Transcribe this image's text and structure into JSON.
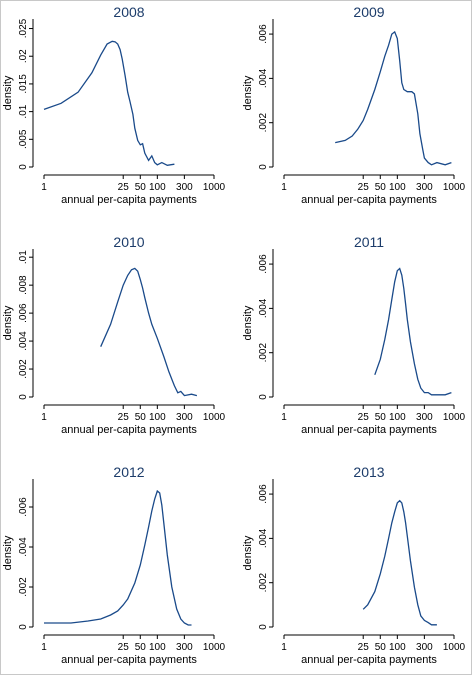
{
  "chart_data": [
    {
      "type": "line",
      "title": "2008",
      "xlabel": "annual per-capita payments",
      "ylabel": "density",
      "xscale": "log",
      "xticks": [
        "1",
        "25",
        "50",
        "100",
        "300",
        "1000"
      ],
      "xtick_values": [
        1,
        25,
        50,
        100,
        300,
        1000
      ],
      "yticks": [
        "0",
        ".005",
        ".01",
        ".015",
        ".02",
        ".025"
      ],
      "ytick_values": [
        0,
        0.005,
        0.01,
        0.015,
        0.02,
        0.025
      ],
      "ylim": [
        0,
        0.026
      ],
      "series": [
        {
          "x": [
            1,
            2,
            4,
            7,
            10,
            13,
            16,
            18,
            20,
            22,
            24,
            27,
            30,
            33,
            37,
            40,
            45,
            50,
            55,
            60,
            70,
            80,
            90,
            100,
            120,
            150,
            200
          ],
          "y": [
            0.0104,
            0.0115,
            0.0135,
            0.017,
            0.0202,
            0.0222,
            0.0227,
            0.0226,
            0.0222,
            0.0212,
            0.0195,
            0.0165,
            0.0135,
            0.0118,
            0.0095,
            0.007,
            0.0048,
            0.004,
            0.0042,
            0.0025,
            0.0012,
            0.002,
            0.0008,
            0.0004,
            0.0008,
            0.0003,
            0.0005
          ]
        }
      ]
    },
    {
      "type": "line",
      "title": "2009",
      "xlabel": "annual per-capita payments",
      "ylabel": "density",
      "xscale": "log",
      "xticks": [
        "1",
        "25",
        "50",
        "100",
        "300",
        "1000"
      ],
      "xtick_values": [
        1,
        25,
        50,
        100,
        300,
        1000
      ],
      "yticks": [
        "0",
        ".002",
        ".004",
        ".006"
      ],
      "ytick_values": [
        0,
        0.002,
        0.004,
        0.006
      ],
      "ylim": [
        0,
        0.0065
      ],
      "series": [
        {
          "x": [
            8,
            12,
            16,
            20,
            25,
            30,
            40,
            50,
            60,
            70,
            80,
            90,
            100,
            110,
            120,
            130,
            150,
            180,
            200,
            230,
            250,
            280,
            300,
            350,
            400,
            500,
            700,
            900
          ],
          "y": [
            0.0011,
            0.0012,
            0.0014,
            0.0017,
            0.0021,
            0.0026,
            0.0035,
            0.0043,
            0.005,
            0.0055,
            0.006,
            0.0061,
            0.0058,
            0.0048,
            0.0038,
            0.0035,
            0.0034,
            0.0034,
            0.0033,
            0.0024,
            0.0015,
            0.0008,
            0.0004,
            0.0002,
            0.0001,
            0.0002,
            0.0001,
            0.0002
          ]
        }
      ]
    },
    {
      "type": "line",
      "title": "2010",
      "xlabel": "annual per-capita payments",
      "ylabel": "density",
      "xscale": "log",
      "xticks": [
        "1",
        "25",
        "50",
        "100",
        "300",
        "1000"
      ],
      "xtick_values": [
        1,
        25,
        50,
        100,
        300,
        1000
      ],
      "yticks": [
        "0",
        ".002",
        ".004",
        ".006",
        ".008",
        ".01"
      ],
      "ytick_values": [
        0,
        0.002,
        0.004,
        0.006,
        0.008,
        0.01
      ],
      "ylim": [
        0,
        0.0103
      ],
      "series": [
        {
          "x": [
            10,
            15,
            20,
            25,
            30,
            35,
            40,
            45,
            50,
            55,
            60,
            70,
            80,
            100,
            130,
            160,
            200,
            230,
            260,
            300,
            400,
            500
          ],
          "y": [
            0.0036,
            0.0052,
            0.0068,
            0.008,
            0.0087,
            0.0091,
            0.0092,
            0.009,
            0.0084,
            0.0078,
            0.0071,
            0.006,
            0.0052,
            0.0042,
            0.0029,
            0.0018,
            0.0008,
            0.0003,
            0.0004,
            0.0001,
            0.0002,
            0.0001
          ]
        }
      ]
    },
    {
      "type": "line",
      "title": "2011",
      "xlabel": "annual per-capita payments",
      "ylabel": "density",
      "xscale": "log",
      "xticks": [
        "1",
        "25",
        "50",
        "100",
        "300",
        "1000"
      ],
      "xtick_values": [
        1,
        25,
        50,
        100,
        300,
        1000
      ],
      "yticks": [
        "0",
        ".002",
        ".004",
        ".006"
      ],
      "ytick_values": [
        0,
        0.002,
        0.004,
        0.006
      ],
      "ylim": [
        0,
        0.0065
      ],
      "series": [
        {
          "x": [
            40,
            50,
            60,
            70,
            80,
            90,
            100,
            110,
            120,
            130,
            140,
            150,
            170,
            200,
            230,
            260,
            300,
            350,
            400,
            500,
            700,
            900
          ],
          "y": [
            0.001,
            0.0017,
            0.0026,
            0.0035,
            0.0044,
            0.0052,
            0.0057,
            0.0058,
            0.0055,
            0.0049,
            0.0042,
            0.0035,
            0.0025,
            0.0015,
            0.0008,
            0.0004,
            0.0002,
            0.0002,
            0.0001,
            0.0001,
            0.0001,
            0.0002
          ]
        }
      ]
    },
    {
      "type": "line",
      "title": "2012",
      "xlabel": "annual per-capita payments",
      "ylabel": "density",
      "xscale": "log",
      "xticks": [
        "1",
        "25",
        "50",
        "100",
        "300",
        "1000"
      ],
      "xtick_values": [
        1,
        25,
        50,
        100,
        300,
        1000
      ],
      "yticks": [
        "0",
        ".002",
        ".004",
        ".006"
      ],
      "ytick_values": [
        0,
        0.002,
        0.004,
        0.006
      ],
      "ylim": [
        0,
        0.0072
      ],
      "series": [
        {
          "x": [
            1,
            3,
            6,
            10,
            15,
            20,
            25,
            30,
            40,
            50,
            60,
            70,
            80,
            90,
            100,
            110,
            120,
            130,
            150,
            180,
            220,
            260,
            300,
            350,
            400
          ],
          "y": [
            0.0002,
            0.0002,
            0.0003,
            0.0004,
            0.0006,
            0.0008,
            0.0011,
            0.0014,
            0.0022,
            0.0031,
            0.0041,
            0.005,
            0.0058,
            0.0064,
            0.0068,
            0.0067,
            0.0061,
            0.0052,
            0.0036,
            0.002,
            0.0009,
            0.0004,
            0.0002,
            0.0001,
            0.0001
          ]
        }
      ]
    },
    {
      "type": "line",
      "title": "2013",
      "xlabel": "annual per-capita payments",
      "ylabel": "density",
      "xscale": "log",
      "xticks": [
        "1",
        "25",
        "50",
        "100",
        "300",
        "1000"
      ],
      "xtick_values": [
        1,
        25,
        50,
        100,
        300,
        1000
      ],
      "yticks": [
        "0",
        ".002",
        ".004",
        ".006"
      ],
      "ytick_values": [
        0,
        0.002,
        0.004,
        0.006
      ],
      "ylim": [
        0,
        0.0065
      ],
      "series": [
        {
          "x": [
            25,
            30,
            40,
            50,
            60,
            70,
            80,
            90,
            100,
            110,
            120,
            130,
            140,
            150,
            170,
            200,
            230,
            260,
            300,
            350,
            400,
            500
          ],
          "y": [
            0.0008,
            0.001,
            0.0016,
            0.0024,
            0.0032,
            0.004,
            0.0047,
            0.0052,
            0.0056,
            0.0057,
            0.0056,
            0.0052,
            0.0047,
            0.0041,
            0.003,
            0.0018,
            0.001,
            0.0005,
            0.0003,
            0.0002,
            0.0001,
            0.0001
          ]
        }
      ]
    }
  ]
}
